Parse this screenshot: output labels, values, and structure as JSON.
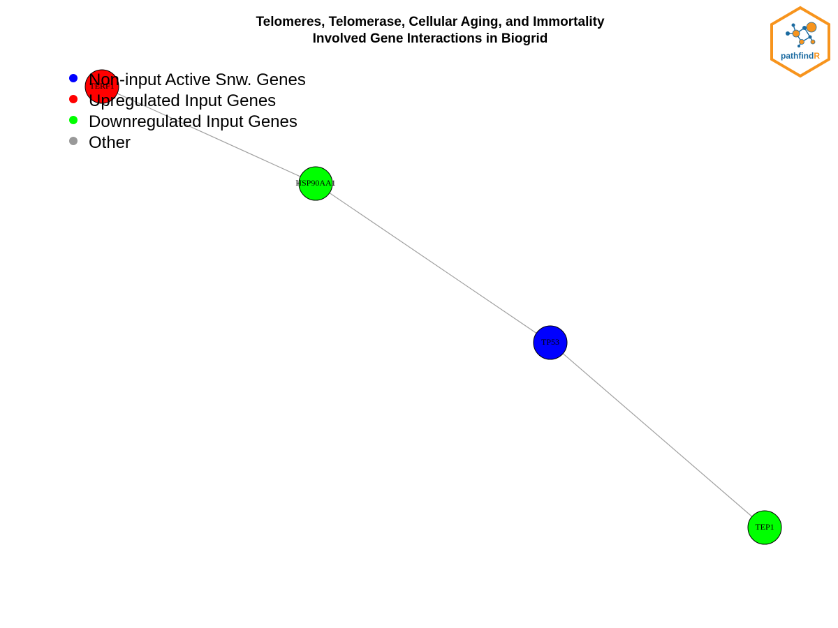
{
  "title": {
    "line1": "Telomeres, Telomerase, Cellular Aging, and  Immortality",
    "line2": "Involved Gene Interactions in Biogrid"
  },
  "colors": {
    "non_input_active": "#0000ff",
    "upregulated": "#ff0000",
    "downregulated": "#00ff00",
    "other": "#999999",
    "edge": "#a0a0a0",
    "logo_orange": "#f7941d",
    "logo_blue": "#1a6aa0"
  },
  "legend": {
    "items": [
      {
        "label": "Non-input Active Snw. Genes",
        "color": "#0000ff"
      },
      {
        "label": "Upregulated Input Genes",
        "color": "#ff0000"
      },
      {
        "label": "Downregulated Input Genes",
        "color": "#00ff00"
      },
      {
        "label": "Other",
        "color": "#999999"
      }
    ]
  },
  "network": {
    "nodes": [
      {
        "id": "TERF1",
        "label": "TERF1",
        "group": "upregulated"
      },
      {
        "id": "HSP90AA1",
        "label": "HSP90AA1",
        "group": "downregulated"
      },
      {
        "id": "TP53",
        "label": "TP53",
        "group": "non_input_active"
      },
      {
        "id": "TEP1",
        "label": "TEP1",
        "group": "downregulated"
      }
    ],
    "edges": [
      {
        "source": "TERF1",
        "target": "HSP90AA1"
      },
      {
        "source": "HSP90AA1",
        "target": "TP53"
      },
      {
        "source": "TP53",
        "target": "TEP1"
      }
    ]
  },
  "logo": {
    "text_main": "pathfind",
    "text_accent": "R"
  }
}
